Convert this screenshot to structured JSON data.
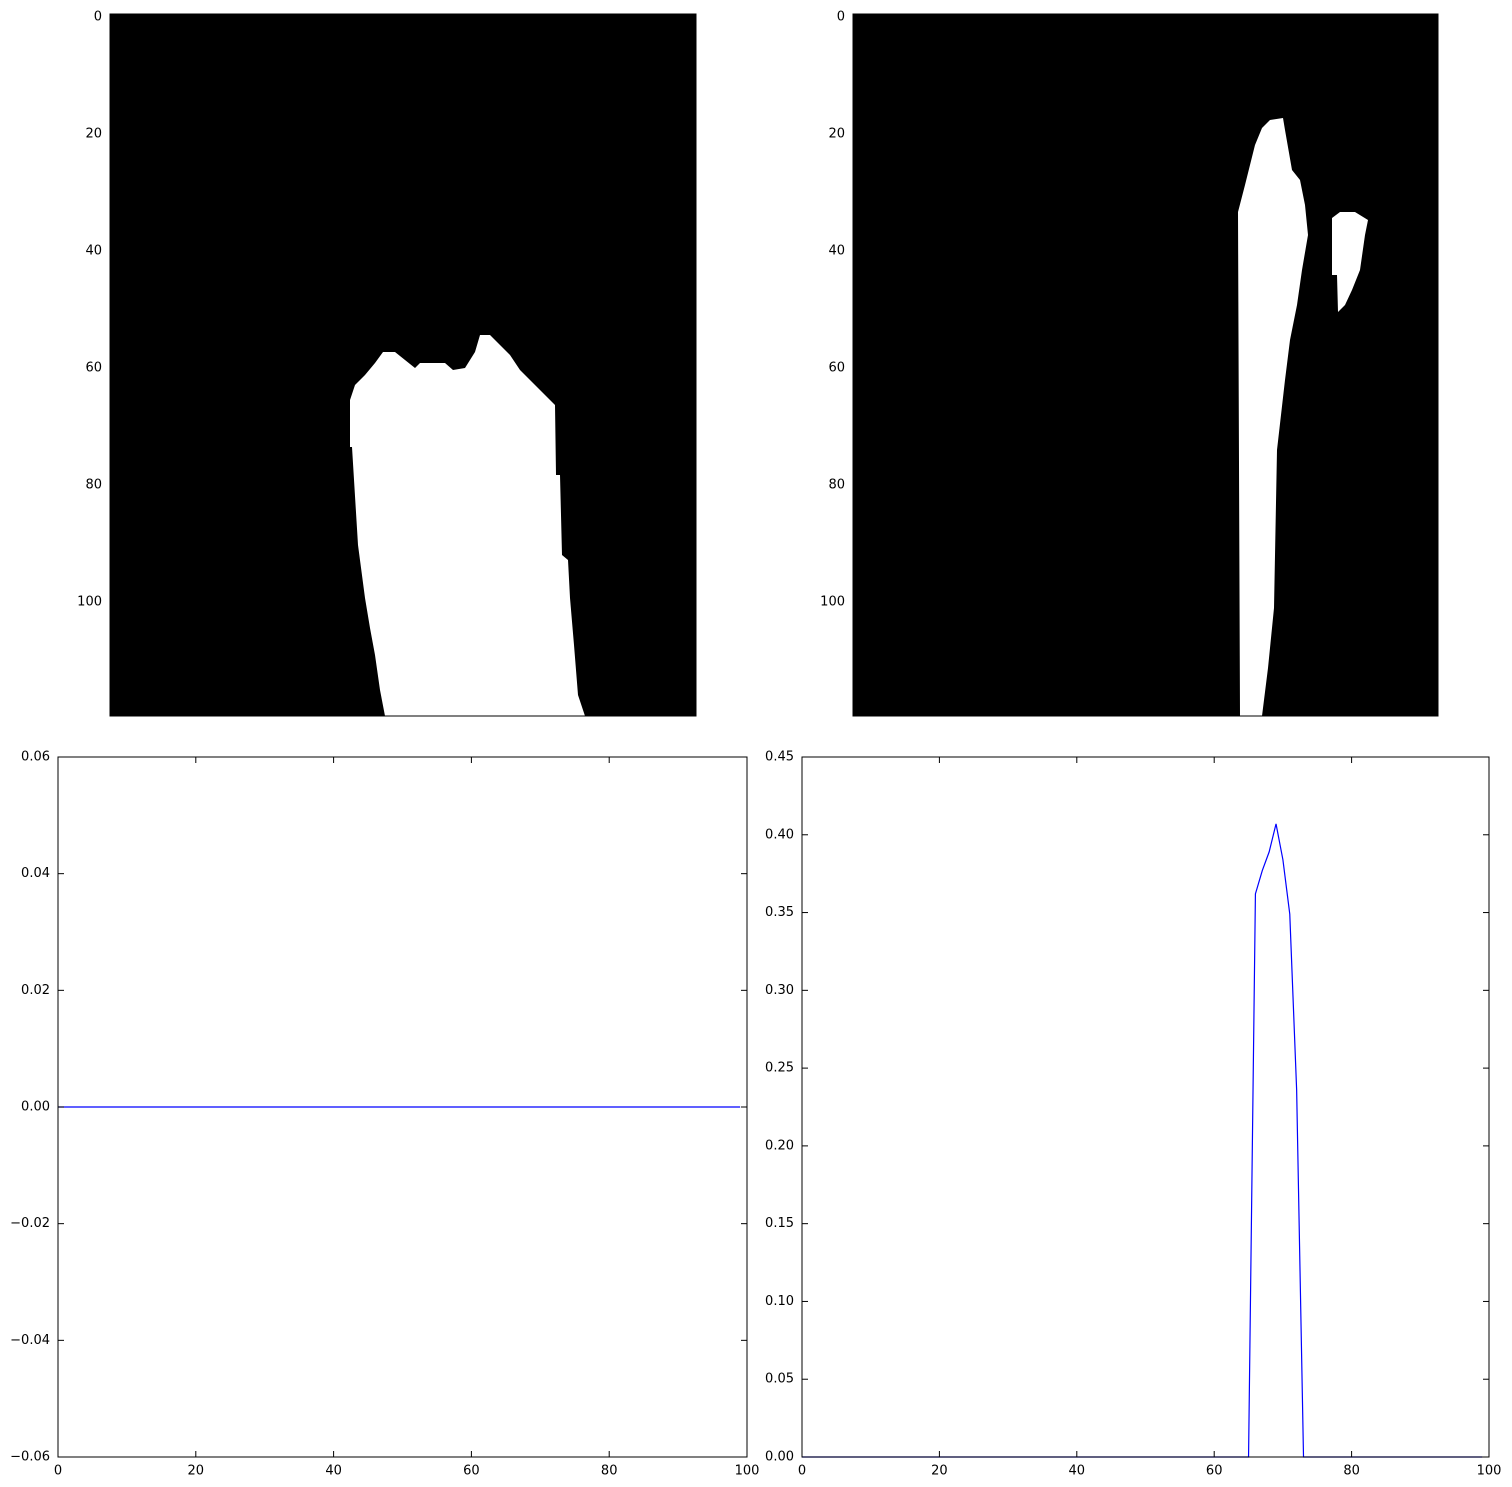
{
  "chart_data": [
    {
      "type": "image",
      "ylim": [
        119.5,
        -0.5
      ],
      "yticks": [
        0,
        20,
        40,
        60,
        80,
        100
      ]
    },
    {
      "type": "image",
      "ylim": [
        119.5,
        -0.5
      ],
      "yticks": [
        0,
        20,
        40,
        60,
        80,
        100
      ]
    },
    {
      "type": "line",
      "color": "#0000ff",
      "x": [
        0,
        1,
        2,
        3,
        4,
        5,
        6,
        7,
        8,
        9,
        10,
        11,
        12,
        13,
        14,
        15,
        16,
        17,
        18,
        19,
        20,
        21,
        22,
        23,
        24,
        25,
        26,
        27,
        28,
        29,
        30,
        31,
        32,
        33,
        34,
        35,
        36,
        37,
        38,
        39,
        40,
        41,
        42,
        43,
        44,
        45,
        46,
        47,
        48,
        49,
        50,
        51,
        52,
        53,
        54,
        55,
        56,
        57,
        58,
        59,
        60,
        61,
        62,
        63,
        64,
        65,
        66,
        67,
        68,
        69,
        70,
        71,
        72,
        73,
        74,
        75,
        76,
        77,
        78,
        79,
        80,
        81,
        82,
        83,
        84,
        85,
        86,
        87,
        88,
        89,
        90,
        91,
        92,
        93,
        94,
        95,
        96,
        97,
        98,
        99
      ],
      "values": [
        0,
        0,
        0,
        0,
        0,
        0,
        0,
        0,
        0,
        0,
        0,
        0,
        0,
        0,
        0,
        0,
        0,
        0,
        0,
        0,
        0,
        0,
        0,
        0,
        0,
        0,
        0,
        0,
        0,
        0,
        0,
        0,
        0,
        0,
        0,
        0,
        0,
        0,
        0,
        0,
        0,
        0,
        0,
        0,
        0,
        0,
        0,
        0,
        0,
        0,
        0,
        0,
        0,
        0,
        0,
        0,
        0,
        0,
        0,
        0,
        0,
        0,
        0,
        0,
        0,
        0,
        0,
        0,
        0,
        0,
        0,
        0,
        0,
        0,
        0,
        0,
        0,
        0,
        0,
        0,
        0,
        0,
        0,
        0,
        0,
        0,
        0,
        0,
        0,
        0,
        0,
        0,
        0,
        0,
        0,
        0,
        0,
        0,
        0,
        0
      ],
      "xlim": [
        0,
        100
      ],
      "xticks": [
        0,
        20,
        40,
        60,
        80,
        100
      ],
      "ylim": [
        -0.06,
        0.06
      ],
      "yticks": [
        {
          "value": -0.06,
          "label": "−0.06"
        },
        {
          "value": -0.04,
          "label": "−0.04"
        },
        {
          "value": -0.02,
          "label": "−0.02"
        },
        {
          "value": 0,
          "label": "0.00"
        },
        0.02,
        0.04,
        0.06
      ]
    },
    {
      "type": "line",
      "color": "#0000ff",
      "x": [
        0,
        1,
        2,
        3,
        4,
        5,
        6,
        7,
        8,
        9,
        10,
        11,
        12,
        13,
        14,
        15,
        16,
        17,
        18,
        19,
        20,
        21,
        22,
        23,
        24,
        25,
        26,
        27,
        28,
        29,
        30,
        31,
        32,
        33,
        34,
        35,
        36,
        37,
        38,
        39,
        40,
        41,
        42,
        43,
        44,
        45,
        46,
        47,
        48,
        49,
        50,
        51,
        52,
        53,
        54,
        55,
        56,
        57,
        58,
        59,
        60,
        61,
        62,
        63,
        64,
        65,
        66,
        67,
        68,
        69,
        70,
        71,
        72,
        73,
        74,
        75,
        76,
        77,
        78,
        79,
        80,
        81,
        82,
        83,
        84,
        85,
        86,
        87,
        88,
        89,
        90,
        91,
        92,
        93,
        94,
        95,
        96,
        97,
        98,
        99
      ],
      "values": [
        0,
        0,
        0,
        0,
        0,
        0,
        0,
        0,
        0,
        0,
        0,
        0,
        0,
        0,
        0,
        0,
        0,
        0,
        0,
        0,
        0,
        0,
        0,
        0,
        0,
        0,
        0,
        0,
        0,
        0,
        0,
        0,
        0,
        0,
        0,
        0,
        0,
        0,
        0,
        0,
        0,
        0,
        0,
        0,
        0,
        0,
        0,
        0,
        0,
        0,
        0,
        0,
        0,
        0,
        0,
        0,
        0,
        0,
        0,
        0,
        0,
        0,
        0,
        0,
        0,
        0,
        0.362,
        0.377,
        0.389,
        0.407,
        0.384,
        0.349,
        0.236,
        0,
        0,
        0,
        0,
        0,
        0,
        0,
        0,
        0,
        0,
        0,
        0,
        0,
        0,
        0,
        0,
        0,
        0,
        0,
        0,
        0,
        0,
        0,
        0,
        0,
        0,
        0
      ],
      "xlim": [
        0,
        100
      ],
      "xticks": [
        0,
        20,
        40,
        60,
        80,
        100
      ],
      "ylim": [
        0,
        0.45
      ],
      "yticks": [
        {
          "value": 0,
          "label": "0.00"
        },
        0.05,
        {
          "value": 0.1,
          "label": "0.10"
        },
        0.15,
        {
          "value": 0.2,
          "label": "0.20"
        },
        0.25,
        {
          "value": 0.3,
          "label": "0.30"
        },
        0.35,
        {
          "value": 0.4,
          "label": "0.40"
        },
        0.45
      ]
    }
  ]
}
